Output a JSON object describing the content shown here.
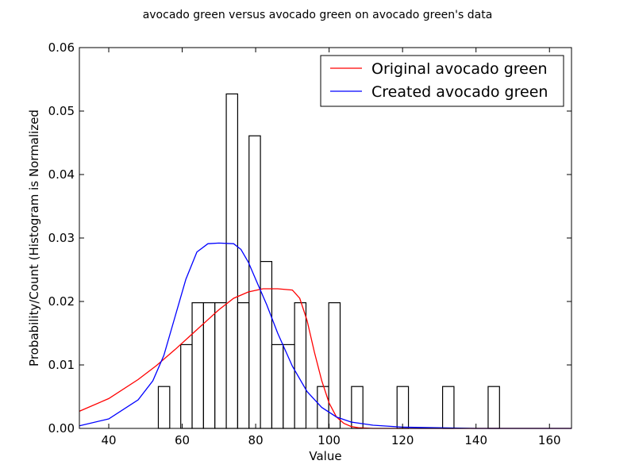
{
  "chart_data": {
    "type": "histogram+line",
    "title": "avocado green versus avocado green on avocado green's data",
    "xlabel": "Value",
    "ylabel": "Probability/Count (Histogram is Normalized",
    "xlim": [
      32,
      166
    ],
    "ylim": [
      0,
      0.06
    ],
    "xticks": [
      40,
      60,
      80,
      100,
      120,
      140,
      160
    ],
    "yticks": [
      0.0,
      0.01,
      0.02,
      0.03,
      0.04,
      0.05,
      0.06
    ],
    "xtick_labels": [
      "40",
      "60",
      "80",
      "100",
      "120",
      "140",
      "160"
    ],
    "ytick_labels": [
      "0.00",
      "0.01",
      "0.02",
      "0.03",
      "0.04",
      "0.05",
      "0.06"
    ],
    "legend_position": "top-right",
    "histogram": {
      "bin_width": 3.1,
      "bin_left_edges": [
        53.5,
        59.6,
        62.7,
        65.8,
        68.9,
        72.0,
        75.1,
        78.2,
        81.3,
        84.4,
        87.5,
        90.6,
        96.8,
        99.9,
        106.1,
        118.5,
        130.9,
        143.3
      ],
      "values": [
        0.0066,
        0.0132,
        0.0198,
        0.0198,
        0.0198,
        0.0527,
        0.0198,
        0.0461,
        0.0263,
        0.0132,
        0.0132,
        0.0198,
        0.0066,
        0.0198,
        0.0066,
        0.0066,
        0.0066,
        0.0066
      ]
    },
    "series": [
      {
        "name": "Original avocado green",
        "color": "#ff0000",
        "x": [
          32,
          40,
          48,
          53,
          58,
          62,
          66,
          70,
          74,
          78,
          82,
          86,
          90,
          92,
          94,
          96,
          98,
          100,
          102,
          104,
          106,
          108,
          112,
          120,
          140,
          166
        ],
        "y": [
          0.0027,
          0.0047,
          0.0077,
          0.0099,
          0.0124,
          0.0145,
          0.0166,
          0.0187,
          0.0205,
          0.0215,
          0.022,
          0.022,
          0.0218,
          0.0205,
          0.017,
          0.012,
          0.0075,
          0.004,
          0.0018,
          0.0008,
          0.0003,
          0.0001,
          0.0,
          0.0,
          0.0,
          0.0
        ]
      },
      {
        "name": "Created avocado green",
        "color": "#0000ff",
        "x": [
          32,
          40,
          48,
          52,
          55,
          58,
          61,
          64,
          67,
          70,
          74,
          76,
          78,
          80,
          83,
          86,
          90,
          94,
          98,
          102,
          106,
          112,
          120,
          140,
          166
        ],
        "y": [
          0.0004,
          0.0015,
          0.0045,
          0.0075,
          0.0115,
          0.0175,
          0.0235,
          0.0278,
          0.0291,
          0.0292,
          0.0291,
          0.0282,
          0.0262,
          0.0235,
          0.0195,
          0.015,
          0.0098,
          0.0058,
          0.0033,
          0.0018,
          0.001,
          0.0005,
          0.0002,
          0.0,
          0.0
        ]
      }
    ]
  }
}
